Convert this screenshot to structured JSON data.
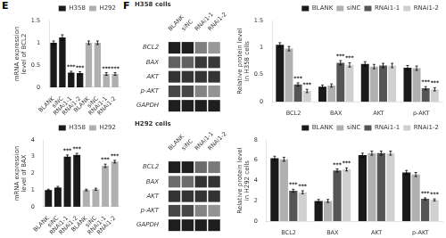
{
  "chart_data": [
    {
      "type": "bar",
      "annotations": [
        "E"
      ],
      "categories": [
        "BLANK",
        "siNC",
        "RNAi1-1",
        "RNAi1-2",
        "BLANK",
        "siNC",
        "RNAi1-1",
        "RNAi1-2"
      ],
      "series": [
        {
          "name": "H358",
          "color": "#1a1a1a",
          "values": [
            1.0,
            1.12,
            0.33,
            0.32,
            null,
            null,
            null,
            null
          ],
          "errors": [
            0.04,
            0.06,
            0.03,
            0.03,
            null,
            null,
            null,
            null
          ],
          "annotations": [
            null,
            null,
            "***",
            "***",
            null,
            null,
            null,
            null
          ]
        },
        {
          "name": "H292",
          "color": "#b0b0b0",
          "values": [
            null,
            null,
            null,
            null,
            1.0,
            1.0,
            0.3,
            0.3
          ],
          "errors": [
            null,
            null,
            null,
            null,
            0.04,
            0.04,
            0.03,
            0.03
          ],
          "annotations": [
            null,
            null,
            null,
            null,
            null,
            null,
            "***",
            "***"
          ]
        }
      ],
      "ylabel": "mRNA expression\nlevel of BCL2",
      "ylim": [
        0,
        1.5
      ],
      "yticks": [
        0,
        0.5,
        1,
        1.5
      ],
      "grid": false,
      "legend": "upper right"
    },
    {
      "type": "bar",
      "categories": [
        "BLANK",
        "siNC",
        "RNAi1-1",
        "RNAi1-2",
        "BLANK",
        "siNC",
        "RNAi1-1",
        "RNAi1-2"
      ],
      "series": [
        {
          "name": "H358",
          "color": "#1a1a1a",
          "values": [
            1.0,
            1.15,
            3.0,
            3.1,
            null,
            null,
            null,
            null
          ],
          "errors": [
            0.05,
            0.07,
            0.1,
            0.1,
            null,
            null,
            null,
            null
          ],
          "annotations": [
            null,
            null,
            "***",
            "***",
            null,
            null,
            null,
            null
          ]
        },
        {
          "name": "H292",
          "color": "#b0b0b0",
          "values": [
            null,
            null,
            null,
            null,
            1.0,
            1.05,
            2.45,
            2.7
          ],
          "errors": [
            null,
            null,
            null,
            null,
            0.05,
            0.06,
            0.1,
            0.08
          ],
          "annotations": [
            null,
            null,
            null,
            null,
            null,
            null,
            "***",
            "***"
          ]
        }
      ],
      "ylabel": "mRNA expression\nlevel of BAX",
      "ylim": [
        0,
        4
      ],
      "yticks": [
        0,
        1,
        2,
        3,
        4
      ],
      "grid": false,
      "legend": "upper right"
    },
    {
      "type": "heatmap",
      "annotations": [
        "F"
      ],
      "title": "H358 cells",
      "x": [
        "BLANK",
        "siNC",
        "RNAi1-1",
        "RNAi1-2"
      ],
      "y": [
        "BCL2",
        "BAX",
        "AKT",
        "p-AKT",
        "GAPDH"
      ],
      "cells": [
        [
          0.12,
          0.12,
          0.5,
          0.6
        ],
        [
          0.38,
          0.38,
          0.22,
          0.22
        ],
        [
          0.2,
          0.2,
          0.2,
          0.2
        ],
        [
          0.28,
          0.28,
          0.52,
          0.58
        ],
        [
          0.12,
          0.12,
          0.12,
          0.12
        ]
      ]
    },
    {
      "type": "heatmap",
      "title": "H292 cells",
      "x": [
        "BLANK",
        "siNC",
        "RNAi1-1",
        "RNAi1-2"
      ],
      "y": [
        "BCL2",
        "BAX",
        "AKT",
        "p-AKT",
        "GAPDH"
      ],
      "cells": [
        [
          0.12,
          0.12,
          0.42,
          0.48
        ],
        [
          0.42,
          0.42,
          0.2,
          0.2
        ],
        [
          0.2,
          0.2,
          0.2,
          0.2
        ],
        [
          0.28,
          0.28,
          0.52,
          0.58
        ],
        [
          0.12,
          0.12,
          0.12,
          0.12
        ]
      ]
    },
    {
      "type": "bar",
      "categories": [
        "BCL2",
        "BAX",
        "AKT",
        "p-AKT"
      ],
      "series": [
        {
          "name": "BLANK",
          "color": "#1a1a1a",
          "values": [
            1.05,
            0.28,
            0.7,
            0.63
          ],
          "errors": [
            0.04,
            0.03,
            0.04,
            0.04
          ]
        },
        {
          "name": "siNC",
          "color": "#b0b0b0",
          "values": [
            0.98,
            0.3,
            0.65,
            0.62
          ],
          "errors": [
            0.04,
            0.03,
            0.04,
            0.04
          ]
        },
        {
          "name": "RNAi1-1",
          "color": "#555555",
          "values": [
            0.32,
            0.72,
            0.67,
            0.25
          ],
          "errors": [
            0.03,
            0.04,
            0.04,
            0.03
          ],
          "annotations": [
            "***",
            "***",
            null,
            "***"
          ]
        },
        {
          "name": "RNAi1-2",
          "color": "#d0d0d0",
          "values": [
            0.2,
            0.68,
            0.67,
            0.23
          ],
          "errors": [
            0.03,
            0.04,
            0.04,
            0.03
          ],
          "annotations": [
            "***",
            "***",
            null,
            "***"
          ]
        }
      ],
      "ylabel": "Relative protein level\nin H358 cells",
      "ylim": [
        0,
        1.5
      ],
      "yticks": [
        0,
        0.5,
        1,
        1.5
      ],
      "grid": false,
      "legend": "upper right"
    },
    {
      "type": "bar",
      "categories": [
        "BCL2",
        "BAX",
        "AKT",
        "p-AKT"
      ],
      "series": [
        {
          "name": "BLANK",
          "color": "#1a1a1a",
          "values": [
            6.2,
            2.0,
            6.5,
            4.8
          ],
          "errors": [
            0.2,
            0.15,
            0.2,
            0.2
          ]
        },
        {
          "name": "siNC",
          "color": "#b0b0b0",
          "values": [
            6.1,
            2.0,
            6.7,
            4.6
          ],
          "errors": [
            0.2,
            0.15,
            0.2,
            0.2
          ]
        },
        {
          "name": "RNAi1-1",
          "color": "#555555",
          "values": [
            3.0,
            5.0,
            6.7,
            2.2
          ],
          "errors": [
            0.15,
            0.15,
            0.2,
            0.1
          ],
          "annotations": [
            "***",
            "***",
            null,
            "***"
          ]
        },
        {
          "name": "RNAi1-2",
          "color": "#d0d0d0",
          "values": [
            2.85,
            5.1,
            6.7,
            2.1
          ],
          "errors": [
            0.15,
            0.15,
            0.2,
            0.1
          ],
          "annotations": [
            "***",
            "***",
            null,
            "***"
          ]
        }
      ],
      "ylabel": "Relative protein level\nin H292 cells",
      "ylim": [
        0,
        8
      ],
      "yticks": [
        0,
        2,
        4,
        6,
        8
      ],
      "grid": false,
      "legend": "upper right"
    }
  ]
}
